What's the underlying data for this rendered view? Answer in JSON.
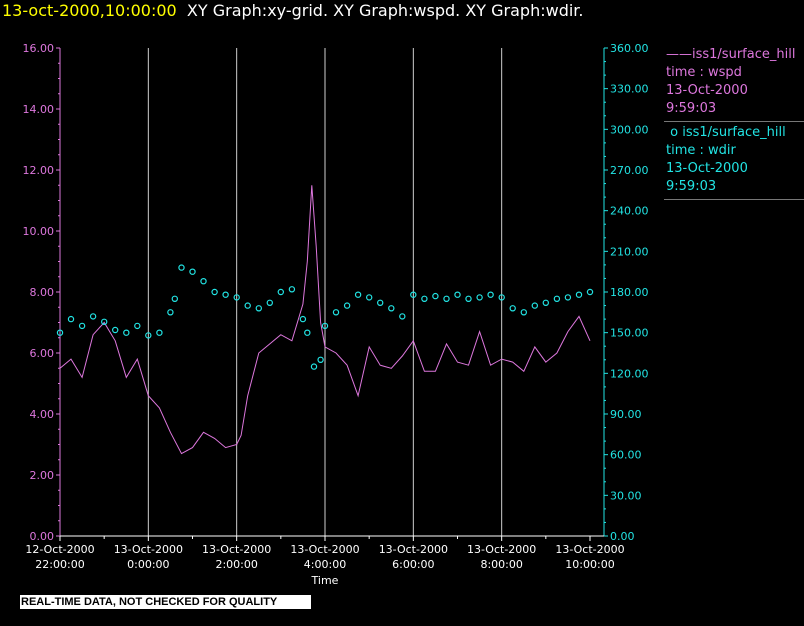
{
  "header": {
    "timestamp": "13-oct-2000,10:00:00",
    "titles": "XY Graph:xy-grid.  XY Graph:wspd.  XY Graph:wdir."
  },
  "legend": {
    "wspd": {
      "name": "iss1/surface_hill",
      "symbol": "——",
      "variable": "time : wspd",
      "date": "13-Oct-2000",
      "time": "9:59:03",
      "color": "#dd77dd"
    },
    "wdir": {
      "name": "iss1/surface_hill",
      "symbol": "o",
      "variable": "time : wdir",
      "date": "13-Oct-2000",
      "time": "9:59:03",
      "color": "#22e4e4"
    }
  },
  "badge": "REAL-TIME DATA, NOT CHECKED FOR QUALITY",
  "chart_data": {
    "type": "line",
    "xlabel": "Time",
    "xlim": [
      -2,
      10
    ],
    "x_unit": "hours relative to 13-Oct-2000 0:00",
    "x_ticks": [
      {
        "value": -2,
        "date": "12-Oct-2000",
        "time": "22:00:00"
      },
      {
        "value": 0,
        "date": "13-Oct-2000",
        "time": "0:00:00"
      },
      {
        "value": 2,
        "date": "13-Oct-2000",
        "time": "2:00:00"
      },
      {
        "value": 4,
        "date": "13-Oct-2000",
        "time": "4:00:00"
      },
      {
        "value": 6,
        "date": "13-Oct-2000",
        "time": "6:00:00"
      },
      {
        "value": 8,
        "date": "13-Oct-2000",
        "time": "8:00:00"
      },
      {
        "value": 10,
        "date": "13-Oct-2000",
        "time": "10:00:00"
      }
    ],
    "y_left": {
      "ylim": [
        0,
        16
      ],
      "ticks": [
        "0.00",
        "2.00",
        "4.00",
        "6.00",
        "8.00",
        "10.00",
        "12.00",
        "14.00",
        "16.00"
      ],
      "color": "#dd77dd"
    },
    "y_right": {
      "ylim": [
        0,
        360
      ],
      "ticks": [
        "0.00",
        "30.00",
        "60.00",
        "90.00",
        "120.00",
        "150.00",
        "180.00",
        "210.00",
        "240.00",
        "270.00",
        "300.00",
        "330.00",
        "360.00"
      ],
      "color": "#22e4e4"
    },
    "grid": "vertical at x ticks",
    "series": [
      {
        "name": "iss1/surface_hill",
        "variable": "wspd",
        "axis": "left",
        "style": "line",
        "color": "#dd77dd",
        "x": [
          -2.0,
          -1.75,
          -1.5,
          -1.25,
          -1.0,
          -0.75,
          -0.5,
          -0.25,
          0.0,
          0.25,
          0.5,
          0.75,
          1.0,
          1.25,
          1.5,
          1.75,
          2.0,
          2.1,
          2.25,
          2.5,
          2.75,
          3.0,
          3.25,
          3.5,
          3.6,
          3.7,
          3.8,
          3.9,
          4.0,
          4.25,
          4.5,
          4.75,
          5.0,
          5.25,
          5.5,
          5.75,
          6.0,
          6.25,
          6.5,
          6.75,
          7.0,
          7.25,
          7.5,
          7.75,
          8.0,
          8.25,
          8.5,
          8.75,
          9.0,
          9.25,
          9.5,
          9.75,
          10.0
        ],
        "y": [
          5.5,
          5.8,
          5.2,
          6.6,
          7.0,
          6.4,
          5.2,
          5.8,
          4.6,
          4.2,
          3.4,
          2.7,
          2.9,
          3.4,
          3.2,
          2.9,
          3.0,
          3.3,
          4.6,
          6.0,
          6.3,
          6.6,
          6.4,
          7.6,
          9.0,
          11.5,
          9.5,
          7.0,
          6.2,
          6.0,
          5.6,
          4.6,
          6.2,
          5.6,
          5.5,
          5.9,
          6.4,
          5.4,
          5.4,
          6.3,
          5.7,
          5.6,
          6.7,
          5.6,
          5.8,
          5.7,
          5.4,
          6.2,
          5.7,
          6.0,
          6.7,
          7.2,
          6.4
        ]
      },
      {
        "name": "iss1/surface_hill",
        "variable": "wdir",
        "axis": "right",
        "style": "markers",
        "marker": "circle",
        "color": "#22e4e4",
        "x": [
          -2.0,
          -1.75,
          -1.5,
          -1.25,
          -1.0,
          -0.75,
          -0.5,
          -0.25,
          0.0,
          0.25,
          0.5,
          0.6,
          0.75,
          1.0,
          1.25,
          1.5,
          1.75,
          2.0,
          2.25,
          2.5,
          2.75,
          3.0,
          3.25,
          3.5,
          3.6,
          3.75,
          3.9,
          4.0,
          4.25,
          4.5,
          4.75,
          5.0,
          5.25,
          5.5,
          5.75,
          6.0,
          6.25,
          6.5,
          6.75,
          7.0,
          7.25,
          7.5,
          7.75,
          8.0,
          8.25,
          8.5,
          8.75,
          9.0,
          9.25,
          9.5,
          9.75,
          10.0
        ],
        "y": [
          150,
          160,
          155,
          162,
          158,
          152,
          150,
          155,
          148,
          150,
          165,
          175,
          198,
          195,
          188,
          180,
          178,
          176,
          170,
          168,
          172,
          180,
          182,
          160,
          150,
          125,
          130,
          155,
          165,
          170,
          178,
          176,
          172,
          168,
          162,
          178,
          175,
          177,
          175,
          178,
          175,
          176,
          178,
          176,
          168,
          165,
          170,
          172,
          175,
          176,
          178,
          180
        ]
      }
    ]
  }
}
